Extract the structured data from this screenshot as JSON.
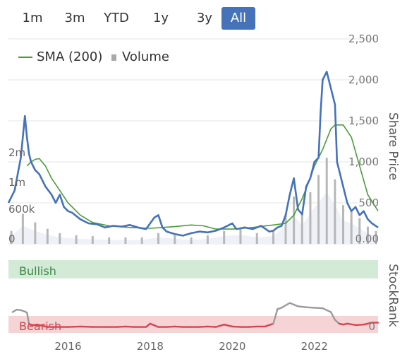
{
  "range_buttons": [
    {
      "label": "1m",
      "active": false
    },
    {
      "label": "3m",
      "active": false
    },
    {
      "label": "YTD",
      "active": false
    },
    {
      "label": "1y",
      "active": false
    },
    {
      "label": "3y",
      "active": false
    },
    {
      "label": "All",
      "active": true
    }
  ],
  "legend": {
    "sma_label": "SMA (200)",
    "volume_label": "Volume"
  },
  "colors": {
    "price": "#4572b8",
    "sma": "#4a9b3a",
    "volume": "#b7b7b7",
    "bullish_band": "#d3ead7",
    "bearish_band": "#f6d4d6",
    "rank_bearish": "#d9434f",
    "rank_neutral": "#9a9a9a",
    "active_button": "#4572b8"
  },
  "chart_data": [
    {
      "type": "line",
      "title": "",
      "y_axis_title": "Share Price",
      "y_ticks": [
        "2,500",
        "2,000",
        "1,500",
        "1,000",
        "500",
        "0.00"
      ],
      "ylim": [
        0,
        2500
      ],
      "volume_ticks": [
        "2m",
        "1m",
        "600k",
        "0"
      ],
      "x_ticks": [
        "2016",
        "2018",
        "2020",
        "2022"
      ],
      "xlim": [
        2014.55,
        2023.55
      ],
      "grid": true,
      "legend_position": "top-left",
      "price": {
        "x": [
          2014.55,
          2014.7,
          2014.85,
          2014.95,
          2015.0,
          2015.05,
          2015.1,
          2015.2,
          2015.3,
          2015.45,
          2015.6,
          2015.7,
          2015.8,
          2015.9,
          2016.0,
          2016.1,
          2016.3,
          2016.5,
          2016.7,
          2016.9,
          2017.1,
          2017.3,
          2017.5,
          2017.7,
          2017.9,
          2018.0,
          2018.1,
          2018.2,
          2018.3,
          2018.4,
          2018.6,
          2018.8,
          2019.0,
          2019.2,
          2019.4,
          2019.6,
          2019.8,
          2020.0,
          2020.1,
          2020.2,
          2020.3,
          2020.5,
          2020.7,
          2020.9,
          2021.0,
          2021.1,
          2021.2,
          2021.3,
          2021.4,
          2021.5,
          2021.6,
          2021.7,
          2021.8,
          2021.9,
          2022.0,
          2022.1,
          2022.15,
          2022.2,
          2022.3,
          2022.4,
          2022.5,
          2022.55,
          2022.6,
          2022.7,
          2022.8,
          2022.9,
          2023.0,
          2023.1,
          2023.2,
          2023.3,
          2023.4,
          2023.55
        ],
        "y": [
          500,
          650,
          1050,
          1560,
          1300,
          1100,
          1000,
          900,
          850,
          700,
          600,
          500,
          600,
          450,
          400,
          380,
          300,
          250,
          240,
          200,
          220,
          210,
          230,
          200,
          180,
          250,
          320,
          350,
          200,
          150,
          120,
          100,
          130,
          150,
          140,
          160,
          200,
          250,
          180,
          190,
          200,
          180,
          220,
          150,
          160,
          200,
          220,
          350,
          600,
          800,
          420,
          360,
          700,
          800,
          1000,
          1050,
          1600,
          2000,
          2100,
          1900,
          1700,
          1000,
          900,
          700,
          500,
          400,
          450,
          350,
          400,
          300,
          250,
          200
        ]
      },
      "sma": {
        "x": [
          2015.0,
          2015.1,
          2015.2,
          2015.3,
          2015.45,
          2015.6,
          2015.8,
          2016.0,
          2016.3,
          2016.6,
          2017.0,
          2017.5,
          2018.0,
          2018.3,
          2018.6,
          2019.0,
          2019.3,
          2019.6,
          2020.0,
          2020.5,
          2021.0,
          2021.3,
          2021.5,
          2021.7,
          2021.9,
          2022.0,
          2022.2,
          2022.4,
          2022.5,
          2022.7,
          2022.9,
          2023.1,
          2023.3,
          2023.55
        ],
        "y": [
          950,
          1000,
          1030,
          1040,
          950,
          800,
          650,
          500,
          350,
          260,
          220,
          200,
          190,
          200,
          210,
          230,
          220,
          180,
          180,
          200,
          230,
          250,
          350,
          550,
          800,
          950,
          1150,
          1400,
          1450,
          1450,
          1300,
          950,
          600,
          400
        ]
      },
      "volume": {
        "x": [
          2014.62,
          2014.9,
          2015.2,
          2015.5,
          2015.8,
          2016.2,
          2016.6,
          2017.0,
          2017.4,
          2017.8,
          2018.2,
          2018.6,
          2019.0,
          2019.4,
          2019.8,
          2020.2,
          2020.6,
          2021.0,
          2021.3,
          2021.5,
          2021.7,
          2021.9,
          2022.1,
          2022.3,
          2022.5,
          2022.7,
          2022.9,
          2023.1,
          2023.3,
          2023.5
        ],
        "y": [
          300000,
          700000,
          500000,
          350000,
          250000,
          200000,
          180000,
          150000,
          150000,
          150000,
          250000,
          200000,
          150000,
          200000,
          300000,
          350000,
          250000,
          300000,
          700000,
          1100000,
          700000,
          1200000,
          1600000,
          2000000,
          1500000,
          900000,
          800000,
          600000,
          400000,
          300000
        ]
      }
    },
    {
      "type": "line",
      "title": "",
      "y_axis_title": "StockRank",
      "zones": [
        {
          "label": "Bullish"
        },
        {
          "label": "Bearish"
        }
      ],
      "y_ticks": [
        "0"
      ],
      "ylim": [
        0,
        100
      ],
      "rank": {
        "x": [
          2014.65,
          2014.75,
          2014.85,
          2014.95,
          2015.0,
          2015.05,
          2015.1,
          2015.3,
          2015.5,
          2015.8,
          2016.0,
          2016.3,
          2016.6,
          2017.0,
          2017.2,
          2017.4,
          2017.6,
          2017.8,
          2017.9,
          2018.0,
          2018.2,
          2018.4,
          2018.6,
          2018.8,
          2019.0,
          2019.2,
          2019.4,
          2019.6,
          2019.8,
          2020.0,
          2020.2,
          2020.4,
          2020.6,
          2020.8,
          2021.0,
          2021.1,
          2021.2,
          2021.4,
          2021.6,
          2021.8,
          2022.0,
          2022.2,
          2022.4,
          2022.5,
          2022.6,
          2022.7,
          2022.8,
          2023.0,
          2023.2,
          2023.4,
          2023.55
        ],
        "y": [
          36,
          41,
          40,
          37,
          35,
          12,
          9,
          9,
          5,
          5,
          5,
          6,
          5,
          5,
          5,
          6,
          5,
          5,
          5,
          12,
          5,
          5,
          6,
          5,
          5,
          5,
          6,
          5,
          10,
          6,
          5,
          5,
          6,
          6,
          12,
          42,
          45,
          55,
          48,
          46,
          45,
          44,
          36,
          20,
          12,
          10,
          12,
          9,
          10,
          14,
          14
        ]
      }
    }
  ]
}
